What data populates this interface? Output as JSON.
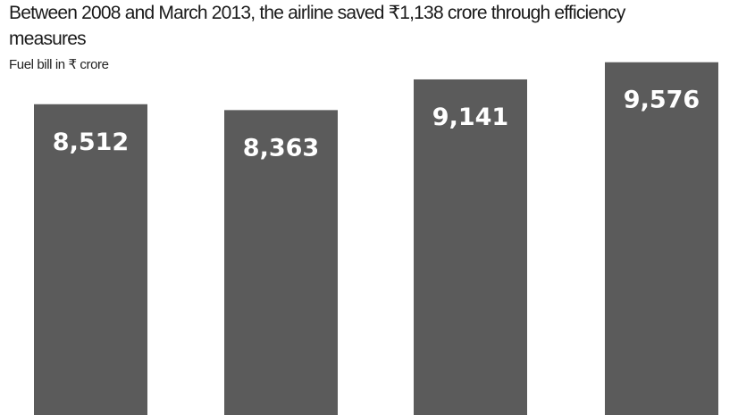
{
  "chart_data": {
    "type": "bar",
    "title": "Between 2008 and March 2013, the airline saved ₹1,138 crore through efficiency measures",
    "ylabel": "Fuel bill in ₹ crore",
    "values": [
      8512,
      8363,
      9141,
      9576
    ],
    "value_labels": [
      "8,512",
      "8,363",
      "9,141",
      "9,576"
    ],
    "ylim": [
      0,
      10000
    ],
    "grid": false,
    "bar_color": "#5b5b5b"
  }
}
